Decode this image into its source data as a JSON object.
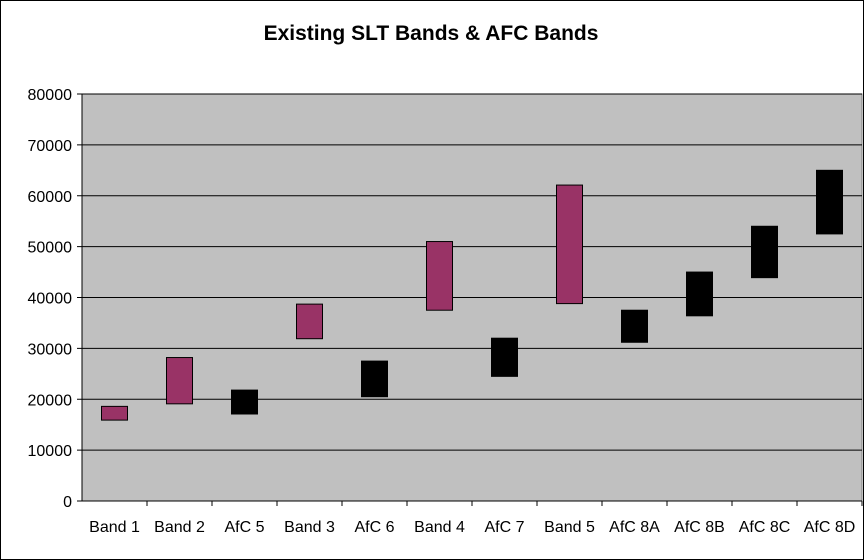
{
  "chart_data": {
    "type": "floating-bar",
    "title": "Existing SLT Bands & AFC Bands",
    "xlabel": "",
    "ylabel": "",
    "ylim": [
      0,
      80000
    ],
    "yticks": [
      0,
      10000,
      20000,
      30000,
      40000,
      50000,
      60000,
      70000,
      80000
    ],
    "grid": true,
    "plot_background": "#c0c0c0",
    "categories": [
      "Band 1",
      "Band 2",
      "AfC 5",
      "Band 3",
      "AfC 6",
      "Band 4",
      "AfC 7",
      "Band 5",
      "AfC 8A",
      "AfC 8B",
      "AfC 8C",
      "AfC 8D"
    ],
    "bars": [
      {
        "category": "Band 1",
        "low": 15900,
        "high": 18600,
        "color": "#993366"
      },
      {
        "category": "Band 2",
        "low": 19100,
        "high": 28200,
        "color": "#993366"
      },
      {
        "category": "AfC 5",
        "low": 17100,
        "high": 21800,
        "color": "#000000"
      },
      {
        "category": "Band 3",
        "low": 31900,
        "high": 38700,
        "color": "#993366"
      },
      {
        "category": "AfC 6",
        "low": 20500,
        "high": 27500,
        "color": "#000000"
      },
      {
        "category": "Band 4",
        "low": 37500,
        "high": 51000,
        "color": "#993366"
      },
      {
        "category": "AfC 7",
        "low": 24500,
        "high": 32000,
        "color": "#000000"
      },
      {
        "category": "Band 5",
        "low": 38800,
        "high": 62100,
        "color": "#993366"
      },
      {
        "category": "AfC 8A",
        "low": 31200,
        "high": 37500,
        "color": "#000000"
      },
      {
        "category": "AfC 8B",
        "low": 36400,
        "high": 45000,
        "color": "#000000"
      },
      {
        "category": "AfC 8C",
        "low": 43900,
        "high": 54000,
        "color": "#000000"
      },
      {
        "category": "AfC 8D",
        "low": 52500,
        "high": 65000,
        "color": "#000000"
      }
    ]
  }
}
